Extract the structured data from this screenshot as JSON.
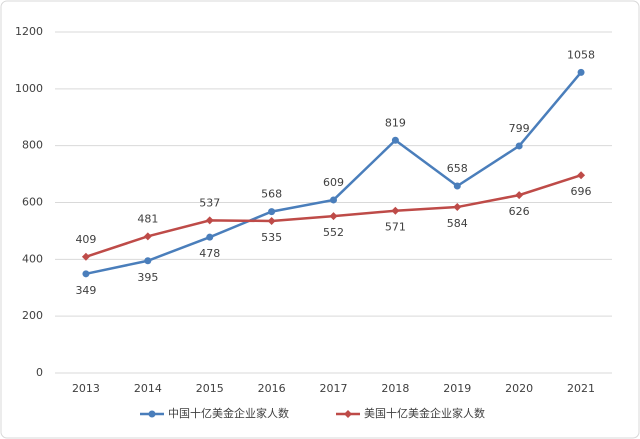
{
  "chart_data": {
    "type": "line",
    "categories": [
      "2013",
      "2014",
      "2015",
      "2016",
      "2017",
      "2018",
      "2019",
      "2020",
      "2021"
    ],
    "series": [
      {
        "name": "中国十亿美金企业家人数",
        "color": "#4a7ebb",
        "marker": "circle",
        "values": [
          349,
          395,
          478,
          568,
          609,
          819,
          658,
          799,
          1058
        ]
      },
      {
        "name": "美国十亿美金企业家人数",
        "color": "#be4b48",
        "marker": "diamond",
        "values": [
          409,
          481,
          537,
          535,
          552,
          571,
          584,
          626,
          696
        ]
      }
    ],
    "ylim": [
      0,
      1200
    ],
    "yticks": [
      0,
      200,
      400,
      600,
      800,
      1000,
      1200
    ],
    "grid": true,
    "legend": "bottom"
  }
}
